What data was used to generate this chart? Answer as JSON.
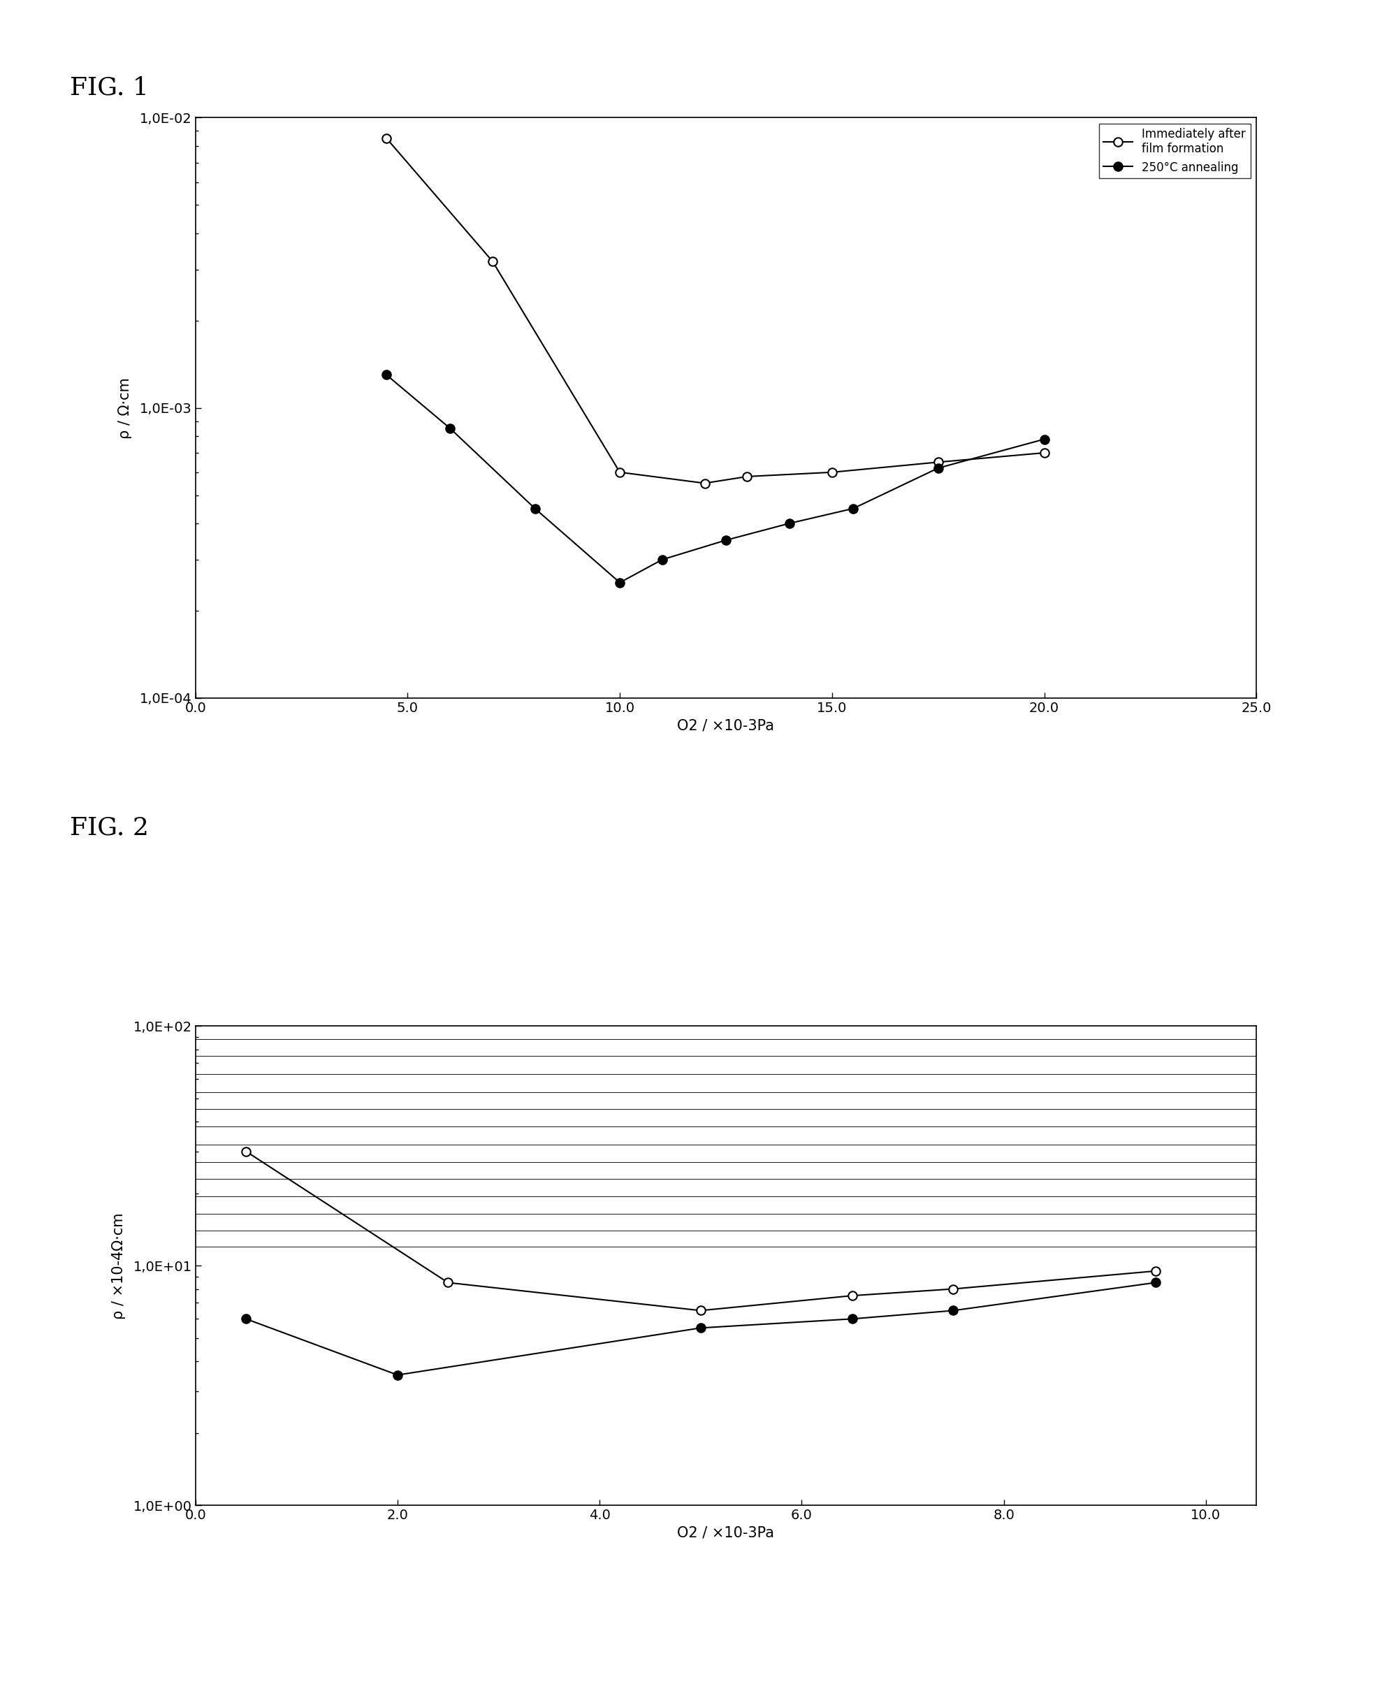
{
  "fig1": {
    "label": "FIG. 1",
    "open_x": [
      4.5,
      7.0,
      10.0,
      12.0,
      13.0,
      15.0,
      17.5,
      20.0
    ],
    "open_y": [
      0.0085,
      0.0032,
      0.0006,
      0.00055,
      0.00058,
      0.0006,
      0.00065,
      0.0007
    ],
    "filled_x": [
      4.5,
      6.0,
      8.0,
      10.0,
      11.0,
      12.5,
      14.0,
      15.5,
      17.5,
      20.0
    ],
    "filled_y": [
      0.0013,
      0.00085,
      0.00045,
      0.00025,
      0.0003,
      0.00035,
      0.0004,
      0.00045,
      0.00062,
      0.00078
    ],
    "xlabel": "O2 / ×10-3Pa",
    "ylabel": "ρ / Ω·cm",
    "xlim": [
      0.0,
      25.0
    ],
    "ylim": [
      0.0001,
      0.01
    ],
    "xticks": [
      0.0,
      5.0,
      10.0,
      15.0,
      20.0,
      25.0
    ],
    "ytick_labels": [
      "1,0E-04",
      "1,0E-03",
      "1,0E-02"
    ],
    "legend_open": "Immediately after\nfilm formation",
    "legend_filled": "250°C annealing"
  },
  "fig2": {
    "label": "FIG. 2",
    "open_x": [
      0.5,
      2.5,
      5.0,
      6.5,
      7.5,
      9.5
    ],
    "open_y": [
      30.0,
      8.5,
      6.5,
      7.5,
      8.0,
      9.5
    ],
    "filled_x": [
      0.5,
      2.0,
      5.0,
      6.5,
      7.5,
      9.5
    ],
    "filled_y": [
      6.0,
      3.5,
      5.5,
      6.0,
      6.5,
      8.5
    ],
    "xlabel": "O2 / ×10-3Pa",
    "ylabel": "ρ / ×10-4Ω·cm",
    "xlim": [
      0.0,
      10.5
    ],
    "ylim": [
      1.0,
      100.0
    ],
    "xticks": [
      0.0,
      2.0,
      4.0,
      6.0,
      8.0,
      10.0
    ],
    "ytick_labels": [
      "1,0E+00",
      "1,0E+01",
      "1,0E+02"
    ],
    "hatch_y_values": [
      12.0,
      14.0,
      16.5,
      19.5,
      23.0,
      27.0,
      32.0,
      38.0,
      45.0,
      53.0,
      63.0,
      75.0,
      88.0
    ]
  },
  "background": "#ffffff",
  "line_color": "#000000",
  "marker_size": 9,
  "line_width": 1.5,
  "tick_fontsize": 14,
  "label_fontsize": 15,
  "fig_label_fontsize": 26
}
